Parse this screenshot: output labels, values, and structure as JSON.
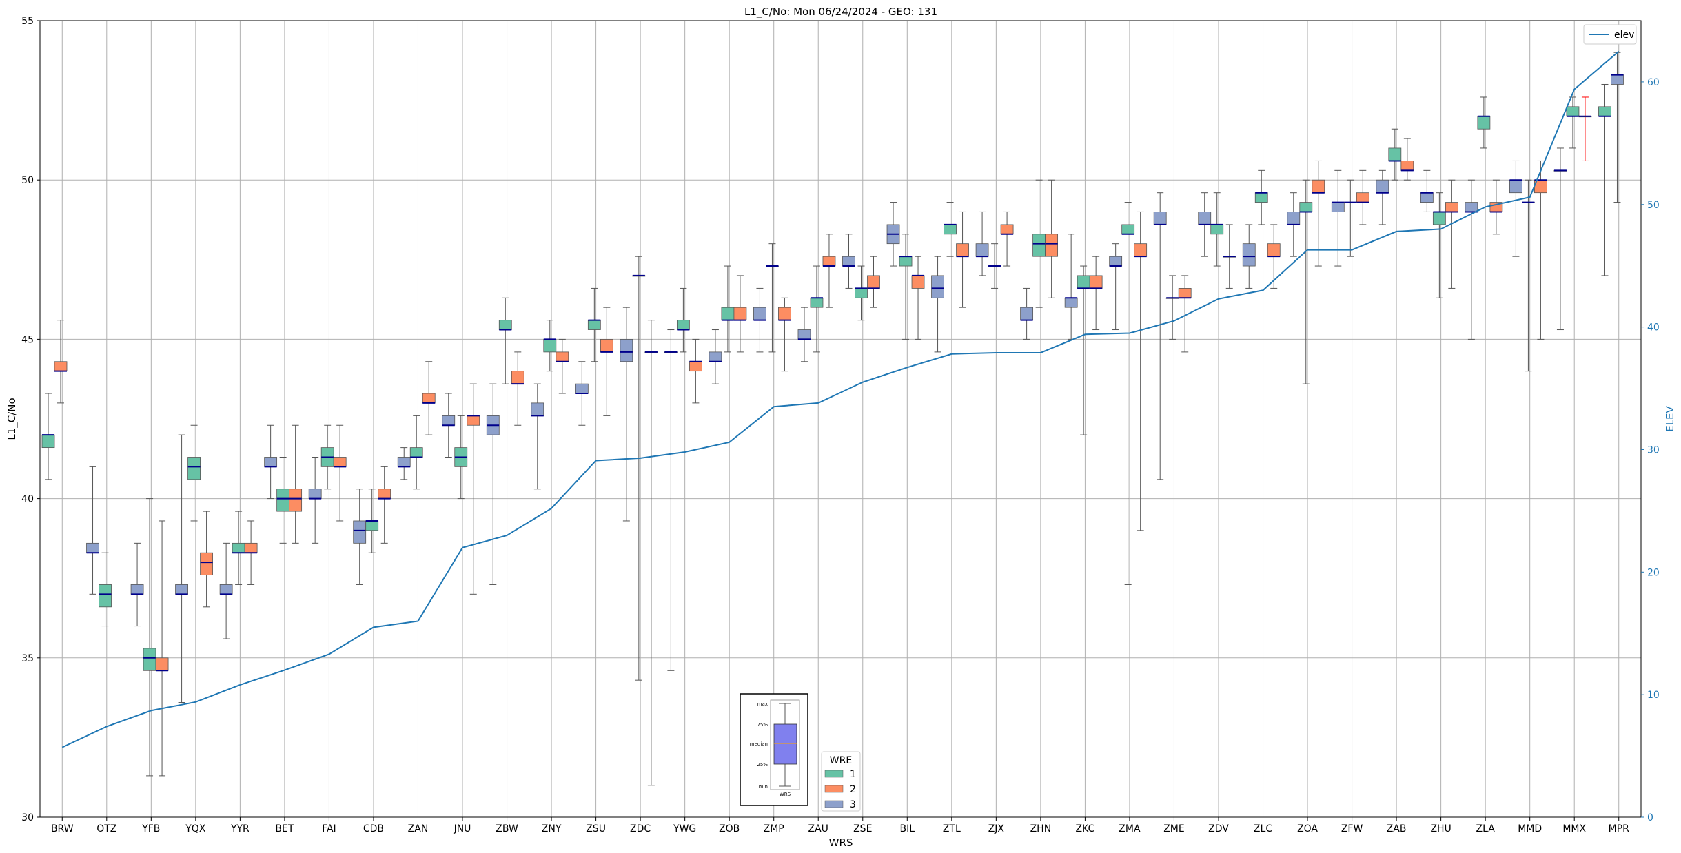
{
  "chart_data": {
    "type": "box",
    "title": "L1_C/No: Mon 06/24/2024 - GEO: 131",
    "xlabel": "WRS",
    "ylabel": "L1_C/No",
    "ylabel_right": "ELEV",
    "ylim": [
      30,
      55
    ],
    "ylim_right": [
      0,
      65
    ],
    "yticks": [
      30,
      35,
      40,
      45,
      50,
      55
    ],
    "yticks_right": [
      0,
      10,
      20,
      30,
      40,
      50,
      60
    ],
    "grid": true,
    "categories": [
      "BRW",
      "OTZ",
      "YFB",
      "YQX",
      "YYR",
      "BET",
      "FAI",
      "CDB",
      "ZAN",
      "JNU",
      "ZBW",
      "ZNY",
      "ZSU",
      "ZDC",
      "YWG",
      "ZOB",
      "ZMP",
      "ZAU",
      "ZSE",
      "BIL",
      "ZTL",
      "ZJX",
      "ZHN",
      "ZKC",
      "ZMA",
      "ZME",
      "ZDV",
      "ZLC",
      "ZOA",
      "ZFW",
      "ZAB",
      "ZHU",
      "ZLA",
      "MMD",
      "MMX",
      "MPR"
    ],
    "colors": {
      "1": "#66c2a5",
      "2": "#fc8d62",
      "3": "#8da0cb",
      "elev": "#1f77b4",
      "median": "#00008b",
      "whisker": "#555555",
      "outlier_whisker": "#ff0000"
    },
    "legend_elev": {
      "label": "elev",
      "placement": "top-right"
    },
    "legend_wre": {
      "title": "WRE",
      "entries": [
        "1",
        "2",
        "3"
      ],
      "placement": "bottom-center"
    },
    "legend_box_labels": {
      "max": "max",
      "q3": "75%",
      "median": "median",
      "q1": "25%",
      "min": "min",
      "xlabel": "WRS"
    },
    "elev_series": {
      "name": "elev",
      "values": [
        5.7,
        7.4,
        8.7,
        9.4,
        10.8,
        12.0,
        13.3,
        15.5,
        16.0,
        22.0,
        23.0,
        25.2,
        29.1,
        29.3,
        29.8,
        30.6,
        33.5,
        33.8,
        35.5,
        36.7,
        37.8,
        37.9,
        37.9,
        39.4,
        39.5,
        40.5,
        42.3,
        43.0,
        46.3,
        46.3,
        47.8,
        48.0,
        49.8,
        50.6,
        59.4,
        62.5
      ]
    },
    "boxes": [
      {
        "cat": "BRW",
        "wre": 1,
        "min": 40.6,
        "q1": 41.6,
        "median": 42.0,
        "q3": 42.0,
        "max": 43.3
      },
      {
        "cat": "BRW",
        "wre": 2,
        "min": 43.0,
        "q1": 44.0,
        "median": 44.0,
        "q3": 44.3,
        "max": 45.6
      },
      {
        "cat": "OTZ",
        "wre": 3,
        "min": 37.0,
        "q1": 38.3,
        "median": 38.3,
        "q3": 38.6,
        "max": 41.0
      },
      {
        "cat": "OTZ",
        "wre": 1,
        "min": 36.0,
        "q1": 36.6,
        "median": 37.0,
        "q3": 37.3,
        "max": 38.3
      },
      {
        "cat": "YFB",
        "wre": 3,
        "min": 36.0,
        "q1": 37.0,
        "median": 37.0,
        "q3": 37.3,
        "max": 38.6
      },
      {
        "cat": "YFB",
        "wre": 1,
        "min": 31.3,
        "q1": 34.6,
        "median": 35.0,
        "q3": 35.3,
        "max": 40.0
      },
      {
        "cat": "YFB",
        "wre": 2,
        "min": 31.3,
        "q1": 34.6,
        "median": 34.6,
        "q3": 35.0,
        "max": 39.3
      },
      {
        "cat": "YQX",
        "wre": 3,
        "min": 33.6,
        "q1": 37.0,
        "median": 37.0,
        "q3": 37.3,
        "max": 42.0
      },
      {
        "cat": "YQX",
        "wre": 1,
        "min": 39.3,
        "q1": 40.6,
        "median": 41.0,
        "q3": 41.3,
        "max": 42.3
      },
      {
        "cat": "YQX",
        "wre": 2,
        "min": 36.6,
        "q1": 37.6,
        "median": 38.0,
        "q3": 38.3,
        "max": 39.6
      },
      {
        "cat": "YYR",
        "wre": 3,
        "min": 35.6,
        "q1": 37.0,
        "median": 37.0,
        "q3": 37.3,
        "max": 38.6
      },
      {
        "cat": "YYR",
        "wre": 1,
        "min": 37.3,
        "q1": 38.3,
        "median": 38.3,
        "q3": 38.6,
        "max": 39.6
      },
      {
        "cat": "YYR",
        "wre": 2,
        "min": 37.3,
        "q1": 38.3,
        "median": 38.3,
        "q3": 38.6,
        "max": 39.3
      },
      {
        "cat": "BET",
        "wre": 3,
        "min": 40.0,
        "q1": 41.0,
        "median": 41.0,
        "q3": 41.3,
        "max": 42.3
      },
      {
        "cat": "BET",
        "wre": 1,
        "min": 38.6,
        "q1": 39.6,
        "median": 40.0,
        "q3": 40.3,
        "max": 41.3
      },
      {
        "cat": "BET",
        "wre": 2,
        "min": 38.6,
        "q1": 39.6,
        "median": 40.0,
        "q3": 40.3,
        "max": 42.3
      },
      {
        "cat": "FAI",
        "wre": 3,
        "min": 38.6,
        "q1": 40.0,
        "median": 40.0,
        "q3": 40.3,
        "max": 41.3
      },
      {
        "cat": "FAI",
        "wre": 1,
        "min": 40.3,
        "q1": 41.0,
        "median": 41.3,
        "q3": 41.6,
        "max": 42.3
      },
      {
        "cat": "FAI",
        "wre": 2,
        "min": 39.3,
        "q1": 41.0,
        "median": 41.0,
        "q3": 41.3,
        "max": 42.3
      },
      {
        "cat": "CDB",
        "wre": 3,
        "min": 37.3,
        "q1": 38.6,
        "median": 39.0,
        "q3": 39.3,
        "max": 40.3
      },
      {
        "cat": "CDB",
        "wre": 1,
        "min": 38.3,
        "q1": 39.0,
        "median": 39.3,
        "q3": 39.3,
        "max": 40.3
      },
      {
        "cat": "CDB",
        "wre": 2,
        "min": 38.6,
        "q1": 40.0,
        "median": 40.0,
        "q3": 40.3,
        "max": 41.0
      },
      {
        "cat": "ZAN",
        "wre": 3,
        "min": 40.6,
        "q1": 41.0,
        "median": 41.0,
        "q3": 41.3,
        "max": 41.6
      },
      {
        "cat": "ZAN",
        "wre": 1,
        "min": 40.3,
        "q1": 41.3,
        "median": 41.3,
        "q3": 41.6,
        "max": 42.6
      },
      {
        "cat": "ZAN",
        "wre": 2,
        "min": 42.0,
        "q1": 43.0,
        "median": 43.0,
        "q3": 43.3,
        "max": 44.3
      },
      {
        "cat": "JNU",
        "wre": 3,
        "min": 41.3,
        "q1": 42.3,
        "median": 42.3,
        "q3": 42.6,
        "max": 43.3
      },
      {
        "cat": "JNU",
        "wre": 1,
        "min": 40.0,
        "q1": 41.0,
        "median": 41.3,
        "q3": 41.6,
        "max": 42.6
      },
      {
        "cat": "JNU",
        "wre": 2,
        "min": 37.0,
        "q1": 42.3,
        "median": 42.6,
        "q3": 42.6,
        "max": 43.6
      },
      {
        "cat": "ZBW",
        "wre": 3,
        "min": 37.3,
        "q1": 42.0,
        "median": 42.3,
        "q3": 42.6,
        "max": 43.6
      },
      {
        "cat": "ZBW",
        "wre": 1,
        "min": 43.6,
        "q1": 45.3,
        "median": 45.3,
        "q3": 45.6,
        "max": 46.3
      },
      {
        "cat": "ZBW",
        "wre": 2,
        "min": 42.3,
        "q1": 43.6,
        "median": 43.6,
        "q3": 44.0,
        "max": 44.6
      },
      {
        "cat": "ZNY",
        "wre": 3,
        "min": 40.3,
        "q1": 42.6,
        "median": 42.6,
        "q3": 43.0,
        "max": 43.6
      },
      {
        "cat": "ZNY",
        "wre": 1,
        "min": 44.0,
        "q1": 44.6,
        "median": 45.0,
        "q3": 45.0,
        "max": 45.6
      },
      {
        "cat": "ZNY",
        "wre": 2,
        "min": 43.3,
        "q1": 44.3,
        "median": 44.3,
        "q3": 44.6,
        "max": 45.0
      },
      {
        "cat": "ZSU",
        "wre": 3,
        "min": 42.3,
        "q1": 43.3,
        "median": 43.3,
        "q3": 43.6,
        "max": 44.3
      },
      {
        "cat": "ZSU",
        "wre": 1,
        "min": 44.3,
        "q1": 45.3,
        "median": 45.6,
        "q3": 45.6,
        "max": 46.6
      },
      {
        "cat": "ZSU",
        "wre": 2,
        "min": 42.6,
        "q1": 44.6,
        "median": 44.6,
        "q3": 45.0,
        "max": 46.0
      },
      {
        "cat": "ZDC",
        "wre": 3,
        "min": 39.3,
        "q1": 44.3,
        "median": 44.6,
        "q3": 45.0,
        "max": 46.0
      },
      {
        "cat": "ZDC",
        "wre": 1,
        "min": 34.3,
        "q1": 47.0,
        "median": 47.0,
        "q3": 47.0,
        "max": 47.6
      },
      {
        "cat": "ZDC",
        "wre": 2,
        "min": 31.0,
        "q1": 44.6,
        "median": 44.6,
        "q3": 44.6,
        "max": 45.6
      },
      {
        "cat": "YWG",
        "wre": 3,
        "min": 34.6,
        "q1": 44.6,
        "median": 44.6,
        "q3": 44.6,
        "max": 45.3
      },
      {
        "cat": "YWG",
        "wre": 1,
        "min": 44.6,
        "q1": 45.3,
        "median": 45.3,
        "q3": 45.6,
        "max": 46.6
      },
      {
        "cat": "YWG",
        "wre": 2,
        "min": 43.0,
        "q1": 44.0,
        "median": 44.3,
        "q3": 44.3,
        "max": 45.0
      },
      {
        "cat": "ZOB",
        "wre": 3,
        "min": 43.6,
        "q1": 44.3,
        "median": 44.3,
        "q3": 44.6,
        "max": 45.3
      },
      {
        "cat": "ZOB",
        "wre": 1,
        "min": 44.6,
        "q1": 45.6,
        "median": 45.6,
        "q3": 46.0,
        "max": 47.3
      },
      {
        "cat": "ZOB",
        "wre": 2,
        "min": 44.6,
        "q1": 45.6,
        "median": 45.6,
        "q3": 46.0,
        "max": 47.0
      },
      {
        "cat": "ZMP",
        "wre": 3,
        "min": 44.6,
        "q1": 45.6,
        "median": 45.6,
        "q3": 46.0,
        "max": 46.6
      },
      {
        "cat": "ZMP",
        "wre": 1,
        "min": 44.6,
        "q1": 47.3,
        "median": 47.3,
        "q3": 47.3,
        "max": 48.0
      },
      {
        "cat": "ZMP",
        "wre": 2,
        "min": 44.0,
        "q1": 45.6,
        "median": 45.6,
        "q3": 46.0,
        "max": 46.3
      },
      {
        "cat": "ZAU",
        "wre": 3,
        "min": 44.3,
        "q1": 45.0,
        "median": 45.0,
        "q3": 45.3,
        "max": 46.0
      },
      {
        "cat": "ZAU",
        "wre": 1,
        "min": 44.6,
        "q1": 46.0,
        "median": 46.3,
        "q3": 46.3,
        "max": 47.3
      },
      {
        "cat": "ZAU",
        "wre": 2,
        "min": 46.0,
        "q1": 47.3,
        "median": 47.3,
        "q3": 47.6,
        "max": 48.3
      },
      {
        "cat": "ZSE",
        "wre": 3,
        "min": 46.6,
        "q1": 47.3,
        "median": 47.3,
        "q3": 47.6,
        "max": 48.3
      },
      {
        "cat": "ZSE",
        "wre": 1,
        "min": 45.6,
        "q1": 46.3,
        "median": 46.6,
        "q3": 46.6,
        "max": 47.3
      },
      {
        "cat": "ZSE",
        "wre": 2,
        "min": 46.0,
        "q1": 46.6,
        "median": 46.6,
        "q3": 47.0,
        "max": 47.6
      },
      {
        "cat": "BIL",
        "wre": 3,
        "min": 47.3,
        "q1": 48.0,
        "median": 48.3,
        "q3": 48.6,
        "max": 49.3
      },
      {
        "cat": "BIL",
        "wre": 1,
        "min": 45.0,
        "q1": 47.3,
        "median": 47.6,
        "q3": 47.6,
        "max": 48.3
      },
      {
        "cat": "BIL",
        "wre": 2,
        "min": 45.0,
        "q1": 46.6,
        "median": 47.0,
        "q3": 47.0,
        "max": 47.6
      },
      {
        "cat": "ZTL",
        "wre": 3,
        "min": 44.6,
        "q1": 46.3,
        "median": 46.6,
        "q3": 47.0,
        "max": 47.6
      },
      {
        "cat": "ZTL",
        "wre": 1,
        "min": 47.6,
        "q1": 48.3,
        "median": 48.6,
        "q3": 48.6,
        "max": 49.3
      },
      {
        "cat": "ZTL",
        "wre": 2,
        "min": 46.0,
        "q1": 47.6,
        "median": 47.6,
        "q3": 48.0,
        "max": 49.0
      },
      {
        "cat": "ZJX",
        "wre": 3,
        "min": 47.0,
        "q1": 47.6,
        "median": 47.6,
        "q3": 48.0,
        "max": 49.0
      },
      {
        "cat": "ZJX",
        "wre": 1,
        "min": 46.6,
        "q1": 47.3,
        "median": 47.3,
        "q3": 47.3,
        "max": 48.0
      },
      {
        "cat": "ZJX",
        "wre": 2,
        "min": 47.3,
        "q1": 48.3,
        "median": 48.3,
        "q3": 48.6,
        "max": 49.0
      },
      {
        "cat": "ZHN",
        "wre": 3,
        "min": 45.0,
        "q1": 45.6,
        "median": 45.6,
        "q3": 46.0,
        "max": 46.6
      },
      {
        "cat": "ZHN",
        "wre": 1,
        "min": 46.0,
        "q1": 47.6,
        "median": 48.0,
        "q3": 48.3,
        "max": 50.0
      },
      {
        "cat": "ZHN",
        "wre": 2,
        "min": 46.3,
        "q1": 47.6,
        "median": 48.0,
        "q3": 48.3,
        "max": 50.0
      },
      {
        "cat": "ZKC",
        "wre": 3,
        "min": 45.0,
        "q1": 46.0,
        "median": 46.3,
        "q3": 46.3,
        "max": 48.3
      },
      {
        "cat": "ZKC",
        "wre": 1,
        "min": 42.0,
        "q1": 46.6,
        "median": 46.6,
        "q3": 47.0,
        "max": 47.3
      },
      {
        "cat": "ZKC",
        "wre": 2,
        "min": 45.3,
        "q1": 46.6,
        "median": 46.6,
        "q3": 47.0,
        "max": 47.6
      },
      {
        "cat": "ZMA",
        "wre": 3,
        "min": 45.3,
        "q1": 47.3,
        "median": 47.3,
        "q3": 47.6,
        "max": 48.0
      },
      {
        "cat": "ZMA",
        "wre": 1,
        "min": 37.3,
        "q1": 48.3,
        "median": 48.3,
        "q3": 48.6,
        "max": 49.3
      },
      {
        "cat": "ZMA",
        "wre": 2,
        "min": 39.0,
        "q1": 47.6,
        "median": 47.6,
        "q3": 48.0,
        "max": 49.0
      },
      {
        "cat": "ZME",
        "wre": 3,
        "min": 40.6,
        "q1": 48.6,
        "median": 48.6,
        "q3": 49.0,
        "max": 49.6
      },
      {
        "cat": "ZME",
        "wre": 1,
        "min": 45.0,
        "q1": 46.3,
        "median": 46.3,
        "q3": 46.3,
        "max": 47.0
      },
      {
        "cat": "ZME",
        "wre": 2,
        "min": 44.6,
        "q1": 46.3,
        "median": 46.3,
        "q3": 46.6,
        "max": 47.0
      },
      {
        "cat": "ZDV",
        "wre": 3,
        "min": 47.6,
        "q1": 48.6,
        "median": 48.6,
        "q3": 49.0,
        "max": 49.6
      },
      {
        "cat": "ZDV",
        "wre": 1,
        "min": 47.3,
        "q1": 48.3,
        "median": 48.6,
        "q3": 48.6,
        "max": 49.6
      },
      {
        "cat": "ZDV",
        "wre": 2,
        "min": 46.6,
        "q1": 47.6,
        "median": 47.6,
        "q3": 47.6,
        "max": 48.6
      },
      {
        "cat": "ZLC",
        "wre": 3,
        "min": 46.6,
        "q1": 47.3,
        "median": 47.6,
        "q3": 48.0,
        "max": 48.6
      },
      {
        "cat": "ZLC",
        "wre": 1,
        "min": 48.6,
        "q1": 49.3,
        "median": 49.6,
        "q3": 49.6,
        "max": 50.3
      },
      {
        "cat": "ZLC",
        "wre": 2,
        "min": 46.6,
        "q1": 47.6,
        "median": 47.6,
        "q3": 48.0,
        "max": 48.6
      },
      {
        "cat": "ZOA",
        "wre": 3,
        "min": 47.6,
        "q1": 48.6,
        "median": 48.6,
        "q3": 49.0,
        "max": 49.6
      },
      {
        "cat": "ZOA",
        "wre": 1,
        "min": 43.6,
        "q1": 49.0,
        "median": 49.0,
        "q3": 49.3,
        "max": 50.0
      },
      {
        "cat": "ZOA",
        "wre": 2,
        "min": 47.3,
        "q1": 49.6,
        "median": 49.6,
        "q3": 50.0,
        "max": 50.6
      },
      {
        "cat": "ZFW",
        "wre": 3,
        "min": 47.3,
        "q1": 49.0,
        "median": 49.3,
        "q3": 49.3,
        "max": 50.3
      },
      {
        "cat": "ZFW",
        "wre": 1,
        "min": 47.6,
        "q1": 49.3,
        "median": 49.3,
        "q3": 49.3,
        "max": 50.0
      },
      {
        "cat": "ZFW",
        "wre": 2,
        "min": 48.6,
        "q1": 49.3,
        "median": 49.3,
        "q3": 49.6,
        "max": 50.3
      },
      {
        "cat": "ZAB",
        "wre": 3,
        "min": 48.6,
        "q1": 49.6,
        "median": 49.6,
        "q3": 50.0,
        "max": 50.3
      },
      {
        "cat": "ZAB",
        "wre": 1,
        "min": 50.0,
        "q1": 50.6,
        "median": 50.6,
        "q3": 51.0,
        "max": 51.6
      },
      {
        "cat": "ZAB",
        "wre": 2,
        "min": 50.0,
        "q1": 50.3,
        "median": 50.3,
        "q3": 50.6,
        "max": 51.3
      },
      {
        "cat": "ZHU",
        "wre": 3,
        "min": 49.0,
        "q1": 49.3,
        "median": 49.6,
        "q3": 49.6,
        "max": 50.3
      },
      {
        "cat": "ZHU",
        "wre": 1,
        "min": 46.3,
        "q1": 48.6,
        "median": 49.0,
        "q3": 49.0,
        "max": 49.6
      },
      {
        "cat": "ZHU",
        "wre": 2,
        "min": 46.6,
        "q1": 49.0,
        "median": 49.0,
        "q3": 49.3,
        "max": 50.0
      },
      {
        "cat": "ZLA",
        "wre": 3,
        "min": 45.0,
        "q1": 49.0,
        "median": 49.0,
        "q3": 49.3,
        "max": 50.0
      },
      {
        "cat": "ZLA",
        "wre": 1,
        "min": 51.0,
        "q1": 51.6,
        "median": 52.0,
        "q3": 52.0,
        "max": 52.6
      },
      {
        "cat": "ZLA",
        "wre": 2,
        "min": 48.3,
        "q1": 49.0,
        "median": 49.0,
        "q3": 49.3,
        "max": 50.0
      },
      {
        "cat": "MMD",
        "wre": 3,
        "min": 47.6,
        "q1": 49.6,
        "median": 50.0,
        "q3": 50.0,
        "max": 50.6
      },
      {
        "cat": "MMD",
        "wre": 1,
        "min": 44.0,
        "q1": 49.3,
        "median": 49.3,
        "q3": 49.3,
        "max": 50.0
      },
      {
        "cat": "MMD",
        "wre": 2,
        "min": 45.0,
        "q1": 49.6,
        "median": 50.0,
        "q3": 50.0,
        "max": 50.6
      },
      {
        "cat": "MMX",
        "wre": 3,
        "min": 45.3,
        "q1": 50.3,
        "median": 50.3,
        "q3": 50.3,
        "max": 51.0
      },
      {
        "cat": "MMX",
        "wre": 1,
        "min": 51.0,
        "q1": 52.0,
        "median": 52.0,
        "q3": 52.3,
        "max": 52.6
      },
      {
        "cat": "MMX",
        "wre": 2,
        "min": 50.6,
        "q1": 52.0,
        "median": 52.0,
        "q3": 52.0,
        "max": 52.6,
        "whisker": "red"
      },
      {
        "cat": "MPR",
        "wre": 1,
        "min": 47.0,
        "q1": 52.0,
        "median": 52.0,
        "q3": 52.3,
        "max": 53.0
      },
      {
        "cat": "MPR",
        "wre": 3,
        "min": 49.3,
        "q1": 53.0,
        "median": 53.3,
        "q3": 53.3,
        "max": 54.0
      }
    ]
  }
}
